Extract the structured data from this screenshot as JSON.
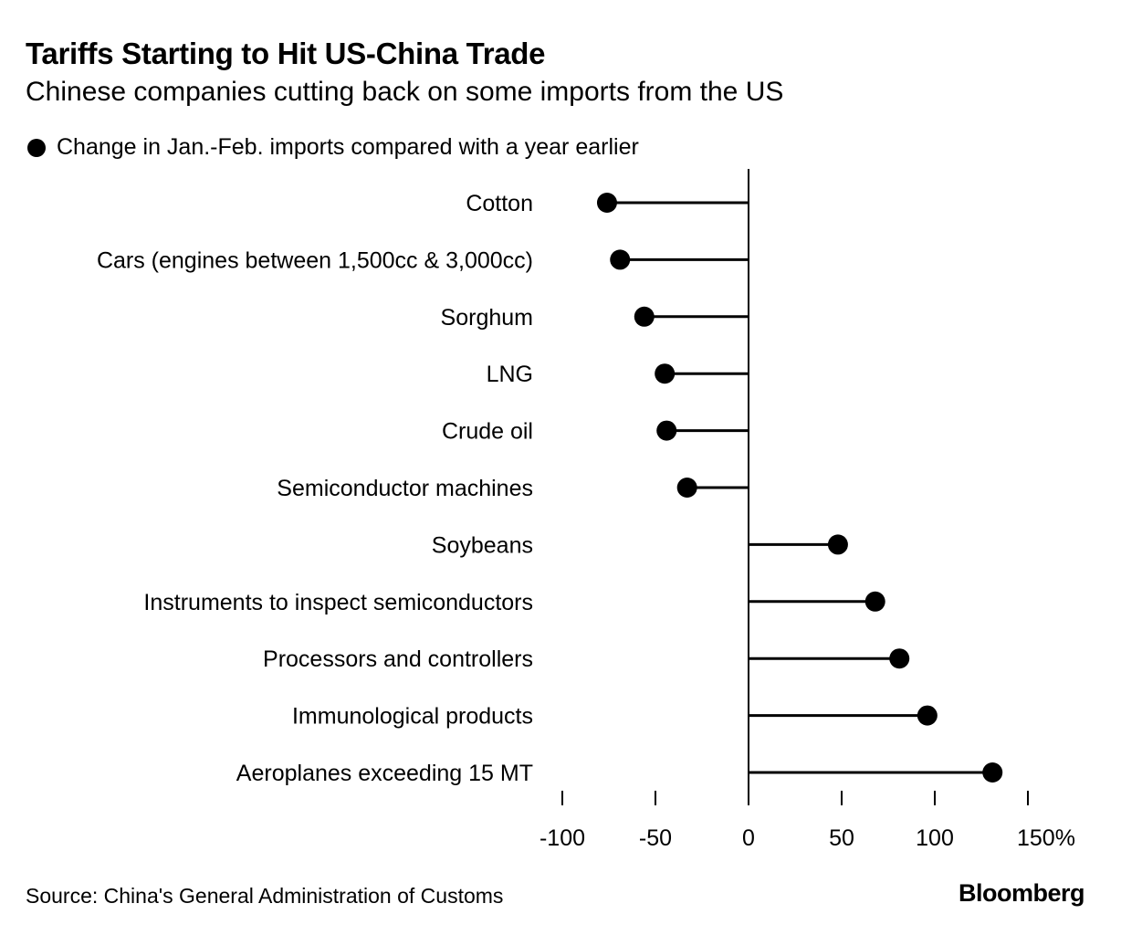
{
  "header": {
    "title": "Tariffs Starting to Hit US-China Trade",
    "subtitle": "Chinese companies cutting back on some imports from the US"
  },
  "legend": {
    "label": "Change in Jan.-Feb. imports compared with a year earlier"
  },
  "footer": {
    "source": "Source: China's General Administration of Customs",
    "brand": "Bloomberg"
  },
  "chart_data": {
    "type": "lollipop",
    "title": "Tariffs Starting to Hit US-China Trade",
    "subtitle": "Chinese companies cutting back on some imports from the US",
    "series_name": "Change in Jan.-Feb. imports compared with a year earlier",
    "categories": [
      "Cotton",
      "Cars (engines between 1,500cc & 3,000cc)",
      "Sorghum",
      "LNG",
      "Crude oil",
      "Semiconductor machines",
      "Soybeans",
      "Instruments to inspect semiconductors",
      "Processors and controllers",
      "Immunological products",
      "Aeroplanes exceeding 15 MT"
    ],
    "values": [
      -76,
      -69,
      -56,
      -45,
      -44,
      -33,
      48,
      68,
      81,
      96,
      131
    ],
    "xlim": [
      -100,
      150
    ],
    "xticks": [
      -100,
      -50,
      0,
      50,
      100,
      150
    ],
    "xtick_labels": [
      "-100",
      "-50",
      "0",
      "50",
      "100",
      "150%"
    ],
    "unit": "%",
    "colors": {
      "mark": "#000000",
      "axis": "#000000"
    }
  }
}
